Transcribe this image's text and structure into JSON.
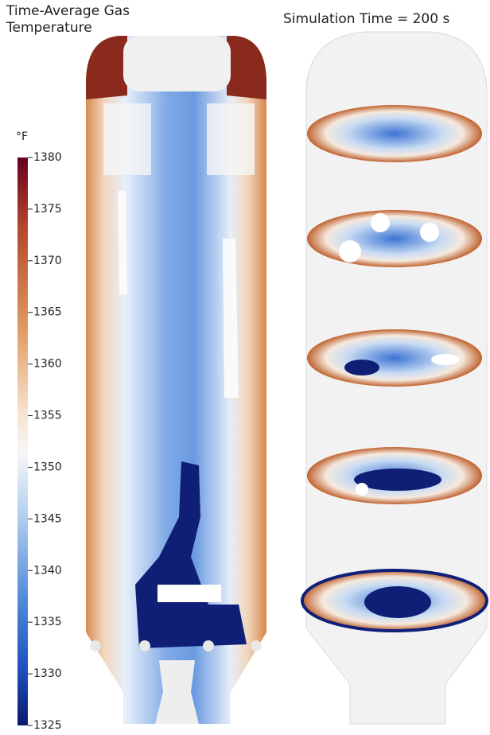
{
  "title": "Time-Average Gas Temperature",
  "subtitle": "Simulation Time = 200 s",
  "colorbar": {
    "unit": "°F",
    "range": [
      1325,
      1380
    ],
    "ticks": [
      1325,
      1330,
      1335,
      1340,
      1345,
      1350,
      1355,
      1360,
      1365,
      1370,
      1375,
      1380
    ]
  }
}
